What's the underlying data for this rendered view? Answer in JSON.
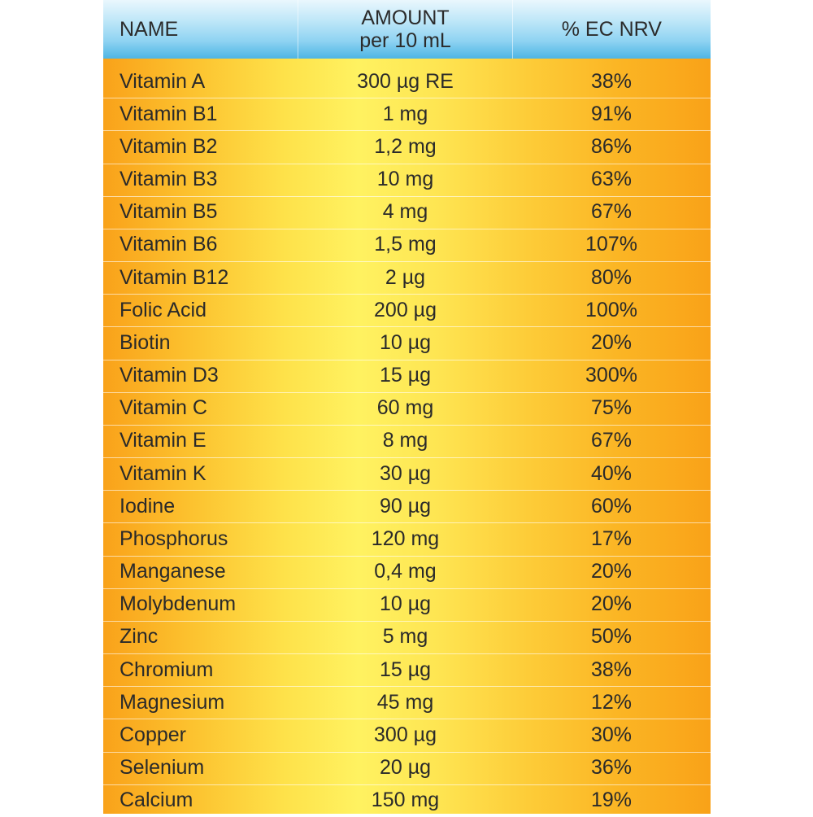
{
  "header": {
    "name": "NAME",
    "amount_line1": "AMOUNT",
    "amount_line2": "per 10 mL",
    "nrv": "% EC NRV"
  },
  "rows": [
    {
      "name": "Vitamin A",
      "amount": "300 µg RE",
      "nrv": "38%"
    },
    {
      "name": "Vitamin B1",
      "amount": "1 mg",
      "nrv": "91%"
    },
    {
      "name": "Vitamin B2",
      "amount": "1,2 mg",
      "nrv": "86%"
    },
    {
      "name": "Vitamin B3",
      "amount": "10 mg",
      "nrv": "63%"
    },
    {
      "name": "Vitamin B5",
      "amount": "4 mg",
      "nrv": "67%"
    },
    {
      "name": "Vitamin B6",
      "amount": "1,5 mg",
      "nrv": "107%"
    },
    {
      "name": "Vitamin B12",
      "amount": "2 µg",
      "nrv": "80%"
    },
    {
      "name": "Folic Acid",
      "amount": "200 µg",
      "nrv": "100%"
    },
    {
      "name": "Biotin",
      "amount": "10 µg",
      "nrv": "20%"
    },
    {
      "name": "Vitamin D3",
      "amount": "15 µg",
      "nrv": "300%"
    },
    {
      "name": "Vitamin C",
      "amount": "60 mg",
      "nrv": "75%"
    },
    {
      "name": "Vitamin E",
      "amount": "8 mg",
      "nrv": "67%"
    },
    {
      "name": "Vitamin K",
      "amount": "30 µg",
      "nrv": "40%"
    },
    {
      "name": "Iodine",
      "amount": "90 µg",
      "nrv": "60%"
    },
    {
      "name": "Phosphorus",
      "amount": "120 mg",
      "nrv": "17%"
    },
    {
      "name": "Manganese",
      "amount": "0,4 mg",
      "nrv": "20%"
    },
    {
      "name": "Molybdenum",
      "amount": "10 µg",
      "nrv": "20%"
    },
    {
      "name": "Zinc",
      "amount": "5 mg",
      "nrv": "50%"
    },
    {
      "name": "Chromium",
      "amount": "15 µg",
      "nrv": "38%"
    },
    {
      "name": "Magnesium",
      "amount": "45 mg",
      "nrv": "12%"
    },
    {
      "name": "Copper",
      "amount": "300 µg",
      "nrv": "30%"
    },
    {
      "name": "Selenium",
      "amount": "20 µg",
      "nrv": "36%"
    },
    {
      "name": "Calcium",
      "amount": "150 mg",
      "nrv": "19%"
    }
  ]
}
